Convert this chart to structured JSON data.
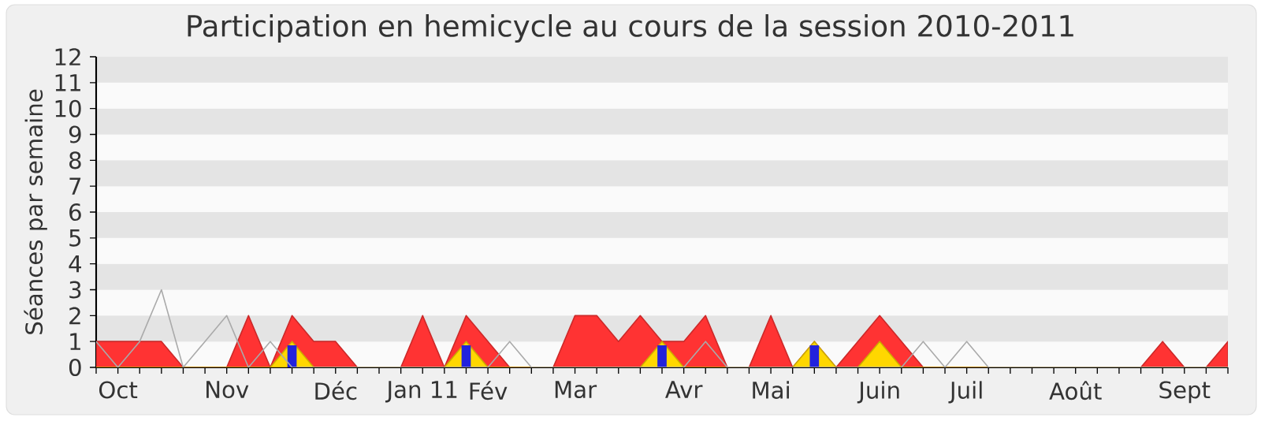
{
  "chart_data": {
    "type": "area",
    "title": "Participation en hemicycle au cours de la session 2010-2011",
    "ylabel": "Séances par semaine",
    "categories": [
      null,
      "Oct",
      null,
      null,
      null,
      null,
      "Nov",
      null,
      null,
      null,
      null,
      "Déc",
      null,
      null,
      null,
      "Jan 11",
      null,
      null,
      "Fév",
      null,
      null,
      null,
      "Mar",
      null,
      null,
      null,
      null,
      "Avr",
      null,
      null,
      null,
      "Mai",
      null,
      null,
      null,
      null,
      "Juin",
      null,
      null,
      null,
      "Juil",
      null,
      null,
      null,
      null,
      "Août",
      null,
      null,
      null,
      null,
      "Sept",
      null,
      null
    ],
    "series": [
      {
        "color": "#ff3333",
        "values": [
          1,
          1,
          1,
          1,
          0,
          0,
          0,
          2,
          0,
          2,
          1,
          1,
          0,
          0,
          0,
          2,
          0,
          2,
          1,
          0,
          0,
          0,
          2,
          2,
          1,
          2,
          1,
          1,
          2,
          0,
          0,
          2,
          0,
          1,
          0,
          1,
          2,
          1,
          0,
          0,
          0,
          0,
          0,
          0,
          0,
          0,
          0,
          0,
          0,
          1,
          0,
          0,
          1
        ]
      },
      {
        "color": "#ffd700",
        "values": [
          0,
          0,
          0,
          0,
          0,
          0,
          0,
          0,
          0,
          1,
          0,
          0,
          0,
          0,
          0,
          0,
          0,
          1,
          0,
          0,
          0,
          0,
          0,
          0,
          0,
          0,
          1,
          0,
          0,
          0,
          0,
          0,
          0,
          1,
          0,
          0,
          1,
          0,
          0,
          0,
          0,
          0,
          0,
          0,
          0,
          0,
          0,
          0,
          0,
          0,
          0,
          0,
          0
        ]
      },
      {
        "type": "bar",
        "color": "#2222dd",
        "values": [
          0,
          0,
          0,
          0,
          0,
          0,
          0,
          0,
          0,
          0.85,
          0,
          0,
          0,
          0,
          0,
          0,
          0,
          0.85,
          0,
          0,
          0,
          0,
          0,
          0,
          0,
          0,
          0.85,
          0,
          0,
          0,
          0,
          0,
          0,
          0.85,
          0,
          0,
          0,
          0,
          0,
          0,
          0,
          0,
          0,
          0,
          0,
          0,
          0,
          0,
          0,
          0,
          0,
          0,
          0
        ]
      },
      {
        "type": "line",
        "color": "#aaaaaa",
        "values": [
          1,
          0,
          1,
          3,
          0,
          1,
          2,
          0,
          1,
          0,
          0,
          0,
          0,
          0,
          0,
          0,
          0,
          0,
          0,
          1,
          0,
          0,
          0,
          0,
          0,
          0,
          0,
          0,
          1,
          0,
          0,
          0,
          0,
          0,
          0,
          0,
          0,
          0,
          1,
          0,
          1,
          0,
          0,
          0,
          0,
          0,
          0,
          0,
          0,
          0,
          0,
          0,
          0
        ]
      }
    ],
    "ylim": [
      0,
      12
    ],
    "yticks": [
      0,
      1,
      2,
      3,
      4,
      5,
      6,
      7,
      8,
      9,
      10,
      11,
      12
    ]
  }
}
